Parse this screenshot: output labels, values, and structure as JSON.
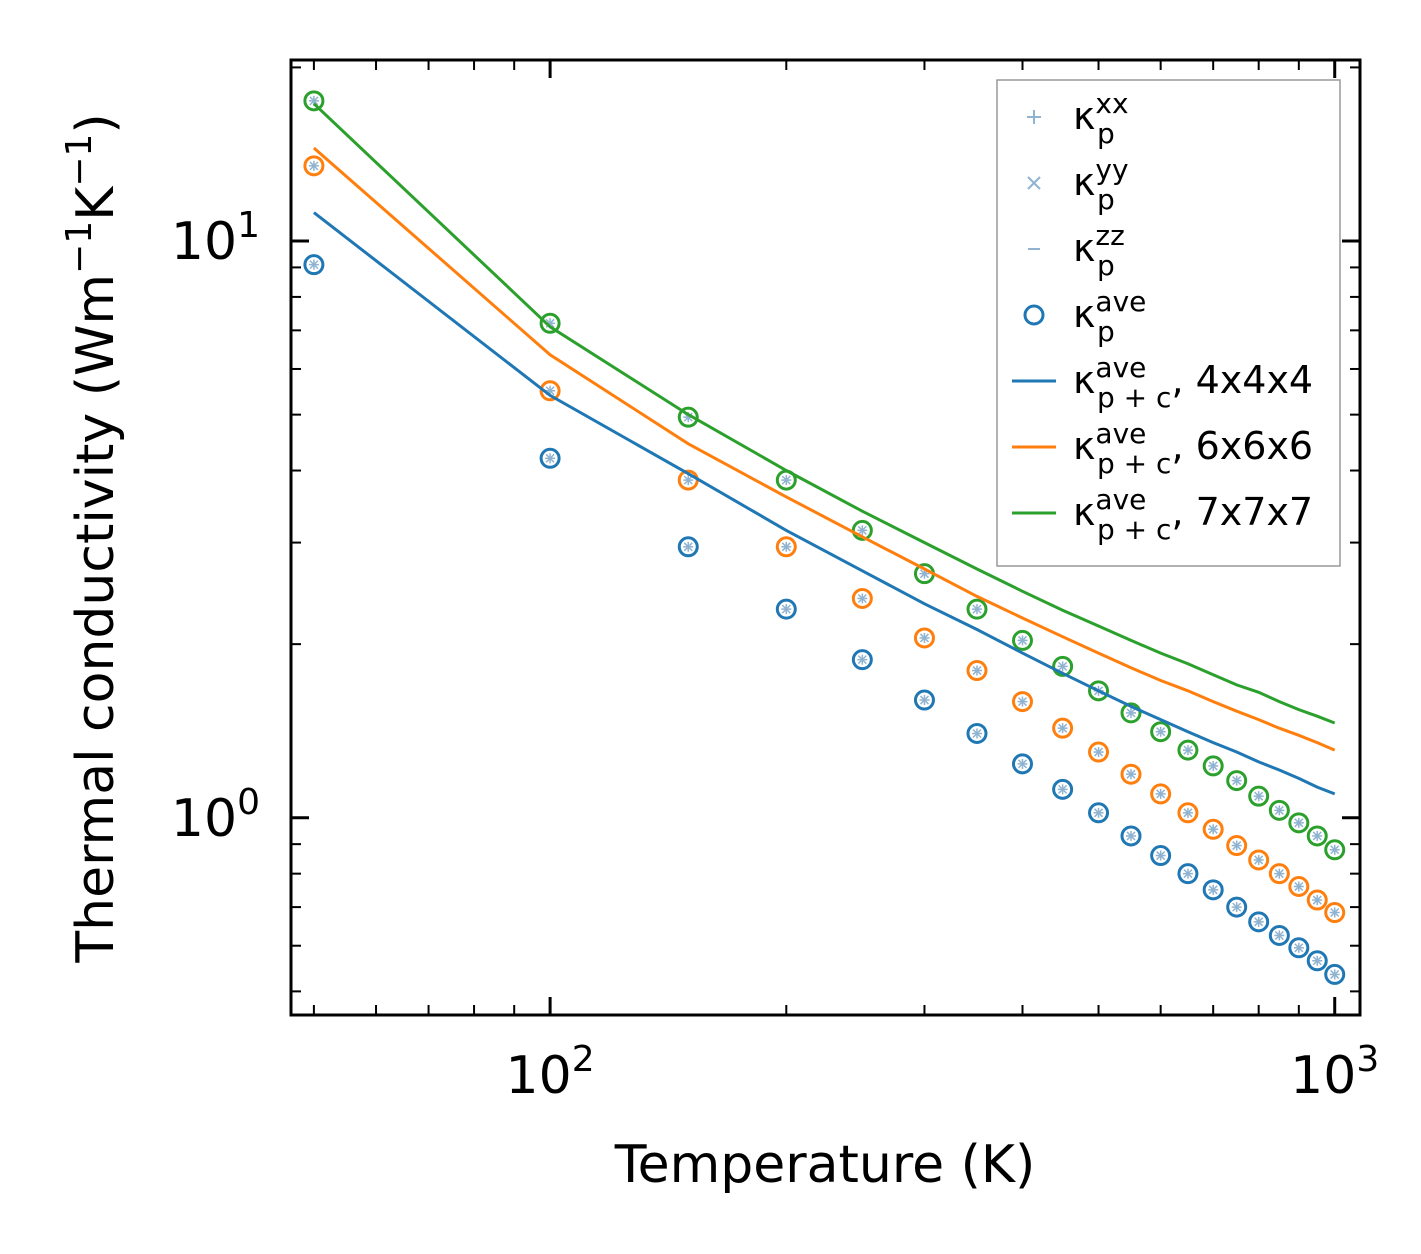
{
  "chart_data": {
    "type": "scatter",
    "xscale": "log",
    "yscale": "log",
    "xlabel": "Temperature (K)",
    "ylabel": {
      "base": "Thermal conductivity (Wm",
      "sup1": "−1",
      "mid": "K",
      "sup2": "−1",
      "end": ")"
    },
    "xlim": [
      50,
      1000
    ],
    "ylim": [
      0.46,
      20
    ],
    "x_ticks": [
      {
        "value": 100,
        "base": "10",
        "exp": "2"
      },
      {
        "value": 1000,
        "base": "10",
        "exp": "3"
      }
    ],
    "y_ticks": [
      {
        "value": 1,
        "base": "10",
        "exp": "0"
      },
      {
        "value": 10,
        "base": "10",
        "exp": "1"
      }
    ],
    "colors": {
      "c44": "#1f77b4",
      "c66": "#ff7f0e",
      "c77": "#2ca02c",
      "light": "#8fb3d0",
      "legend_border": "#999999"
    },
    "legend": [
      {
        "kind": "plus",
        "sym": "κ",
        "sub": "p",
        "sup": "xx",
        "suffix": ""
      },
      {
        "kind": "cross",
        "sym": "κ",
        "sub": "p",
        "sup": "yy",
        "suffix": ""
      },
      {
        "kind": "dash",
        "sym": "κ",
        "sub": "p",
        "sup": "zz",
        "suffix": ""
      },
      {
        "kind": "circle",
        "sym": "κ",
        "sub": "p",
        "sup": "ave",
        "suffix": ""
      },
      {
        "kind": "line",
        "color": "#1f77b4",
        "sym": "κ",
        "sub": "p + c",
        "sup": "ave",
        "suffix": ", 4x4x4"
      },
      {
        "kind": "line",
        "color": "#ff7f0e",
        "sym": "κ",
        "sub": "p + c",
        "sup": "ave",
        "suffix": ", 6x6x6"
      },
      {
        "kind": "line",
        "color": "#2ca02c",
        "sym": "κ",
        "sub": "p + c",
        "sup": "ave",
        "suffix": ", 7x7x7"
      }
    ],
    "x": [
      50,
      100,
      150,
      200,
      250,
      300,
      350,
      400,
      450,
      500,
      550,
      600,
      650,
      700,
      750,
      800,
      850,
      900,
      950,
      1000
    ],
    "series": [
      {
        "name": "κp ave 4x4x4",
        "color": "#1f77b4",
        "type": "scatter",
        "values": [
          9.1,
          4.2,
          2.95,
          2.3,
          1.88,
          1.6,
          1.4,
          1.24,
          1.12,
          1.02,
          0.93,
          0.86,
          0.8,
          0.75,
          0.7,
          0.66,
          0.625,
          0.595,
          0.565,
          0.535
        ]
      },
      {
        "name": "κp ave 6x6x6",
        "color": "#ff7f0e",
        "type": "scatter",
        "values": [
          13.5,
          5.5,
          3.85,
          2.95,
          2.4,
          2.05,
          1.8,
          1.59,
          1.43,
          1.3,
          1.19,
          1.1,
          1.02,
          0.955,
          0.895,
          0.845,
          0.8,
          0.76,
          0.72,
          0.685
        ]
      },
      {
        "name": "κp ave 7x7x7",
        "color": "#2ca02c",
        "type": "scatter",
        "values": [
          17.5,
          7.2,
          4.95,
          3.85,
          3.15,
          2.65,
          2.3,
          2.03,
          1.83,
          1.66,
          1.52,
          1.41,
          1.31,
          1.23,
          1.16,
          1.09,
          1.03,
          0.98,
          0.93,
          0.88
        ]
      },
      {
        "name": "κp+c ave 4x4x4",
        "color": "#1f77b4",
        "type": "line",
        "values": [
          11.2,
          5.4,
          3.95,
          3.15,
          2.68,
          2.35,
          2.12,
          1.93,
          1.78,
          1.66,
          1.56,
          1.48,
          1.41,
          1.35,
          1.3,
          1.25,
          1.21,
          1.17,
          1.13,
          1.1
        ]
      },
      {
        "name": "κp+c ave 6x6x6",
        "color": "#ff7f0e",
        "type": "line",
        "values": [
          14.5,
          6.35,
          4.45,
          3.6,
          3.07,
          2.7,
          2.42,
          2.22,
          2.06,
          1.93,
          1.82,
          1.73,
          1.66,
          1.59,
          1.53,
          1.48,
          1.43,
          1.39,
          1.35,
          1.31
        ]
      },
      {
        "name": "κp+c ave 7x7x7",
        "color": "#2ca02c",
        "type": "line",
        "values": [
          17.3,
          7.1,
          5.0,
          4.0,
          3.4,
          3.0,
          2.7,
          2.47,
          2.29,
          2.15,
          2.03,
          1.93,
          1.85,
          1.77,
          1.7,
          1.65,
          1.59,
          1.54,
          1.5,
          1.46
        ]
      }
    ]
  }
}
